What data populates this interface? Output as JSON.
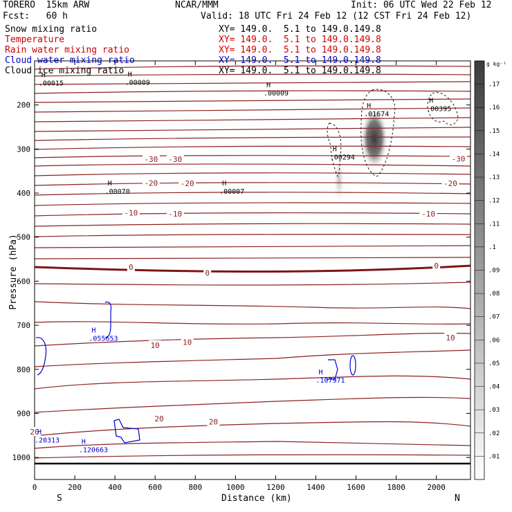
{
  "header": {
    "model": "TORERO  15km ARW",
    "agency": "NCAR/MMM",
    "init": "Init: 06 UTC Wed 22 Feb 12",
    "fcst": "Fcst:   60 h",
    "valid": "Valid: 18 UTC Fri 24 Feb 12 (12 CST Fri 24 Feb 12)"
  },
  "fields": [
    {
      "name": "Snow mixing ratio",
      "xy": "XY= 149.0.  5.1 to 149.0.149.8",
      "color": "#000000"
    },
    {
      "name": "Temperature",
      "xy": "XY= 149.0.  5.1 to 149.0.149.8",
      "color": "#cc0000"
    },
    {
      "name": "Rain water mixing ratio",
      "xy": "XY= 149.0.  5.1 to 149.0.149.8",
      "color": "#cc0000"
    },
    {
      "name": "Cloud water mixing ratio",
      "xy": "XY= 149.0.  5.1 to 149.0.149.8",
      "color": "#0000cc"
    },
    {
      "name": "Cloud ice mixing ratio",
      "xy": "XY= 149.0.  5.1 to 149.0.149.8",
      "color": "#000000"
    }
  ],
  "chart_data": {
    "type": "cross-section",
    "xlabel": "Distance (km)",
    "ylabel": "Pressure (hPa)",
    "xlim": [
      0,
      2170
    ],
    "ylim": [
      1050,
      100
    ],
    "x_ticks": [
      0,
      200,
      400,
      600,
      800,
      1000,
      1200,
      1400,
      1600,
      1800,
      2000
    ],
    "y_ticks": [
      200,
      300,
      400,
      500,
      600,
      700,
      800,
      900,
      1000
    ],
    "x_end_labels": {
      "left": "S",
      "right": "N"
    },
    "colorbar": {
      "unit": "g kg⁻¹",
      "ticks": [
        ".01",
        ".02",
        ".03",
        ".04",
        ".05",
        ".06",
        ".07",
        ".08",
        ".09",
        ".1",
        ".11",
        ".12",
        ".13",
        ".14",
        ".15",
        ".16",
        ".17"
      ]
    },
    "temperature_labels": [
      {
        "x": 580,
        "p": 323,
        "label": "-30"
      },
      {
        "x": 700,
        "p": 323,
        "label": "-30"
      },
      {
        "x": 2110,
        "p": 322,
        "label": "-30"
      },
      {
        "x": 580,
        "p": 377,
        "label": "-20"
      },
      {
        "x": 760,
        "p": 378,
        "label": "-20"
      },
      {
        "x": 2070,
        "p": 378,
        "label": "-20"
      },
      {
        "x": 480,
        "p": 445,
        "label": "-10"
      },
      {
        "x": 700,
        "p": 447,
        "label": "-10"
      },
      {
        "x": 1960,
        "p": 447,
        "label": "-10"
      },
      {
        "x": 480,
        "p": 568,
        "label": "0"
      },
      {
        "x": 860,
        "p": 581,
        "label": "0"
      },
      {
        "x": 2000,
        "p": 565,
        "label": "0"
      },
      {
        "x": 600,
        "p": 745,
        "label": "10"
      },
      {
        "x": 760,
        "p": 738,
        "label": "10"
      },
      {
        "x": 2070,
        "p": 728,
        "label": "10"
      },
      {
        "x": 620,
        "p": 912,
        "label": "20"
      },
      {
        "x": 890,
        "p": 919,
        "label": "20"
      },
      {
        "x": 0,
        "p": 942,
        "label": "20"
      }
    ],
    "maxima": [
      {
        "x": 20,
        "p": 137,
        "label": ".00015",
        "color": "#000000"
      },
      {
        "x": 450,
        "p": 135,
        "label": ".00009",
        "color": "#000000"
      },
      {
        "x": 1140,
        "p": 160,
        "label": ".00009",
        "color": "#000000"
      },
      {
        "x": 1640,
        "p": 207,
        "label": ".01674",
        "color": "#000000"
      },
      {
        "x": 1950,
        "p": 195,
        "label": ".00395",
        "color": "#000000"
      },
      {
        "x": 1470,
        "p": 305,
        "label": ".00294",
        "color": "#000000"
      },
      {
        "x": 350,
        "p": 383,
        "label": ".00070",
        "color": "#000000"
      },
      {
        "x": 920,
        "p": 383,
        "label": ".00007",
        "color": "#000000"
      },
      {
        "x": 270,
        "p": 716,
        "label": ".055653",
        "color": "#0000cc"
      },
      {
        "x": 1400,
        "p": 811,
        "label": ".107971",
        "color": "#0000cc"
      },
      {
        "x": 0,
        "p": 947,
        "label": ".20313",
        "color": "#0000cc"
      },
      {
        "x": 220,
        "p": 969,
        "label": ".120663",
        "color": "#0000cc"
      }
    ]
  }
}
